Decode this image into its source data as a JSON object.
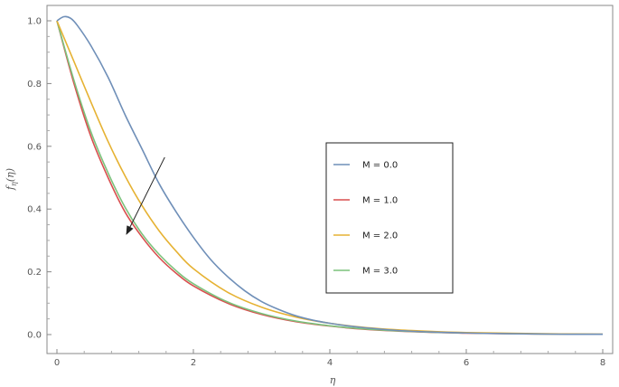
{
  "chart_data": {
    "type": "line",
    "xlabel": "η",
    "ylabel": "f_η(η)",
    "xlim": [
      0,
      8
    ],
    "ylim": [
      0,
      1
    ],
    "xticks": [
      0,
      2,
      4,
      6,
      8
    ],
    "yticks": [
      0.0,
      0.2,
      0.4,
      0.6,
      0.8,
      1.0
    ],
    "xtick_labels": [
      "0",
      "2",
      "4",
      "6",
      "8"
    ],
    "ytick_labels": [
      "0.0",
      "0.2",
      "0.4",
      "0.6",
      "0.8",
      "1.0"
    ],
    "grid": false,
    "legend_position": "center-right",
    "annotation": "arrow indicating decrease with increasing M",
    "annotation_arrow": {
      "from": [
        1.58,
        0.565
      ],
      "to": [
        1.02,
        0.32
      ]
    },
    "series": [
      {
        "name": "M = 0.0",
        "color": "#6f8fb8",
        "x": [
          0,
          0.1,
          0.2,
          0.3,
          0.5,
          0.75,
          1.0,
          1.25,
          1.5,
          1.75,
          2.0,
          2.25,
          2.5,
          2.75,
          3.0,
          3.25,
          3.5,
          3.75,
          4.0,
          4.25,
          4.5,
          5.0,
          5.5,
          6.0,
          6.5,
          7.0,
          7.5,
          8.0
        ],
        "y": [
          1.0,
          1.013,
          1.008,
          0.985,
          0.92,
          0.82,
          0.7,
          0.59,
          0.48,
          0.39,
          0.31,
          0.24,
          0.185,
          0.14,
          0.105,
          0.08,
          0.06,
          0.046,
          0.036,
          0.028,
          0.022,
          0.013,
          0.008,
          0.005,
          0.003,
          0.002,
          0.001,
          0.001
        ]
      },
      {
        "name": "M = 1.0",
        "color": "#d94f4f",
        "x": [
          0,
          0.25,
          0.5,
          0.75,
          1.0,
          1.25,
          1.5,
          1.75,
          2.0,
          2.5,
          3.0,
          3.5,
          4.0,
          4.5,
          5.0,
          5.5,
          6.0,
          7.0,
          8.0
        ],
        "y": [
          1.0,
          0.8,
          0.63,
          0.5,
          0.39,
          0.31,
          0.245,
          0.195,
          0.155,
          0.1,
          0.064,
          0.041,
          0.027,
          0.017,
          0.011,
          0.007,
          0.0045,
          0.002,
          0.001
        ]
      },
      {
        "name": "M = 2.0",
        "color": "#e6b233",
        "x": [
          0,
          0.25,
          0.5,
          0.75,
          1.0,
          1.25,
          1.5,
          1.75,
          2.0,
          2.5,
          3.0,
          3.5,
          4.0,
          4.5,
          5.0,
          5.5,
          6.0,
          7.0,
          8.0
        ],
        "y": [
          1.0,
          0.87,
          0.74,
          0.615,
          0.505,
          0.41,
          0.33,
          0.265,
          0.21,
          0.135,
          0.087,
          0.056,
          0.036,
          0.023,
          0.015,
          0.01,
          0.0065,
          0.003,
          0.001
        ]
      },
      {
        "name": "M = 3.0",
        "color": "#7cc27c",
        "x": [
          0,
          0.25,
          0.5,
          0.75,
          1.0,
          1.25,
          1.5,
          1.75,
          2.0,
          2.5,
          3.0,
          3.5,
          4.0,
          4.5,
          5.0,
          5.5,
          6.0,
          7.0,
          8.0
        ],
        "y": [
          1.0,
          0.81,
          0.645,
          0.515,
          0.405,
          0.32,
          0.255,
          0.203,
          0.162,
          0.104,
          0.067,
          0.043,
          0.028,
          0.018,
          0.0115,
          0.0075,
          0.005,
          0.002,
          0.001
        ]
      }
    ]
  }
}
